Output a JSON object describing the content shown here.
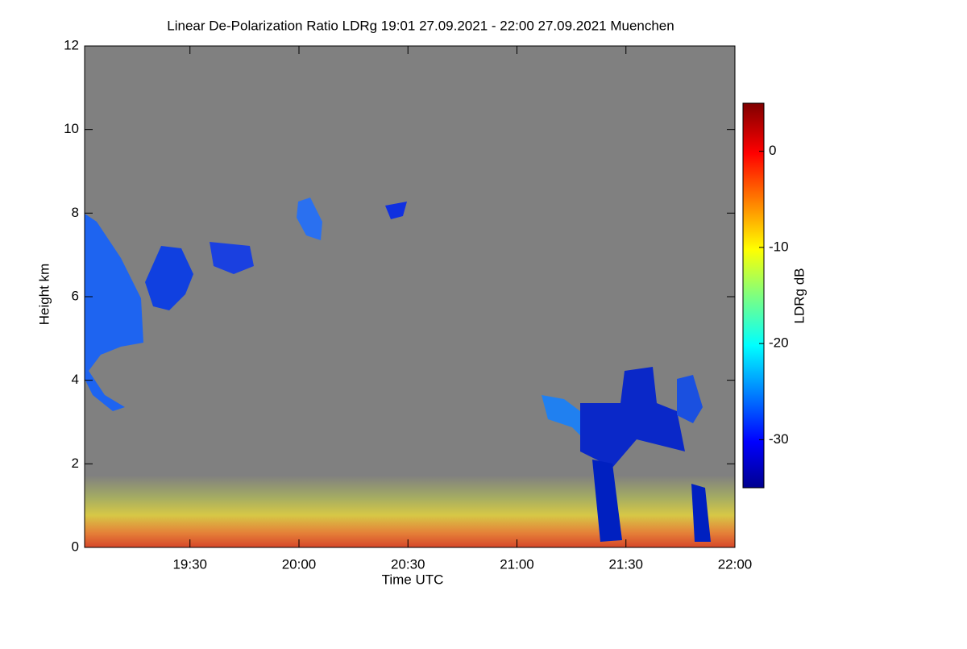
{
  "chart_data": {
    "type": "heatmap",
    "title": "Linear De-Polarization Ratio LDRg   19:01 27.09.2021 - 22:00 27.09.2021 Muenchen",
    "x_label": "Time UTC",
    "y_label": "Height km",
    "xlim": [
      19.0167,
      22.0
    ],
    "xticks": [
      {
        "value": 19.5,
        "label": "19:30"
      },
      {
        "value": 20.0,
        "label": "20:00"
      },
      {
        "value": 20.5,
        "label": "20:30"
      },
      {
        "value": 21.0,
        "label": "21:00"
      },
      {
        "value": 21.5,
        "label": "21:30"
      },
      {
        "value": 22.0,
        "label": "22:00"
      }
    ],
    "ylim": [
      0,
      12
    ],
    "yticks": [
      0,
      2,
      4,
      6,
      8,
      10,
      12
    ],
    "colorbar": {
      "label": "LDRg dB",
      "lim": [
        -35,
        5
      ],
      "ticks": [
        0,
        -10,
        -20,
        -30
      ]
    }
  }
}
